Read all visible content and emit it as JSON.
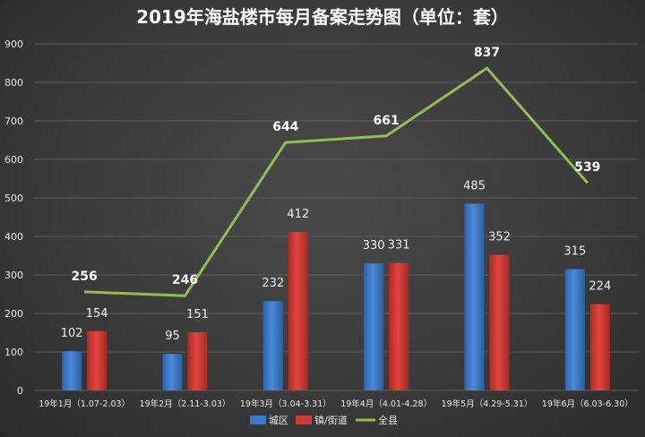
{
  "chart_data": {
    "type": "bar",
    "title": "2019年海盐楼市每月备案走势图（单位：套）",
    "categories": [
      "19年1月（1.07-2.03）",
      "19年2月（2.11-3.03）",
      "19年3月（3.04-3.31）",
      "19年4月（4.01-4.28）",
      "19年5月（4.29-5.31）",
      "19年6月（6.03-6.30）"
    ],
    "series": [
      {
        "name": "城区",
        "type": "bar",
        "color": "#3a78c9",
        "values": [
          102,
          95,
          232,
          330,
          485,
          315
        ]
      },
      {
        "name": "镇/街道",
        "type": "bar",
        "color": "#d03a34",
        "values": [
          154,
          151,
          412,
          331,
          352,
          224
        ]
      },
      {
        "name": "全县",
        "type": "line",
        "color": "#94bd50",
        "values": [
          256,
          246,
          644,
          661,
          837,
          539
        ]
      }
    ],
    "ylim": [
      0,
      900
    ],
    "yticks": [
      0,
      100,
      200,
      300,
      400,
      500,
      600,
      700,
      800,
      900
    ],
    "grid": true,
    "legend_position": "bottom"
  }
}
